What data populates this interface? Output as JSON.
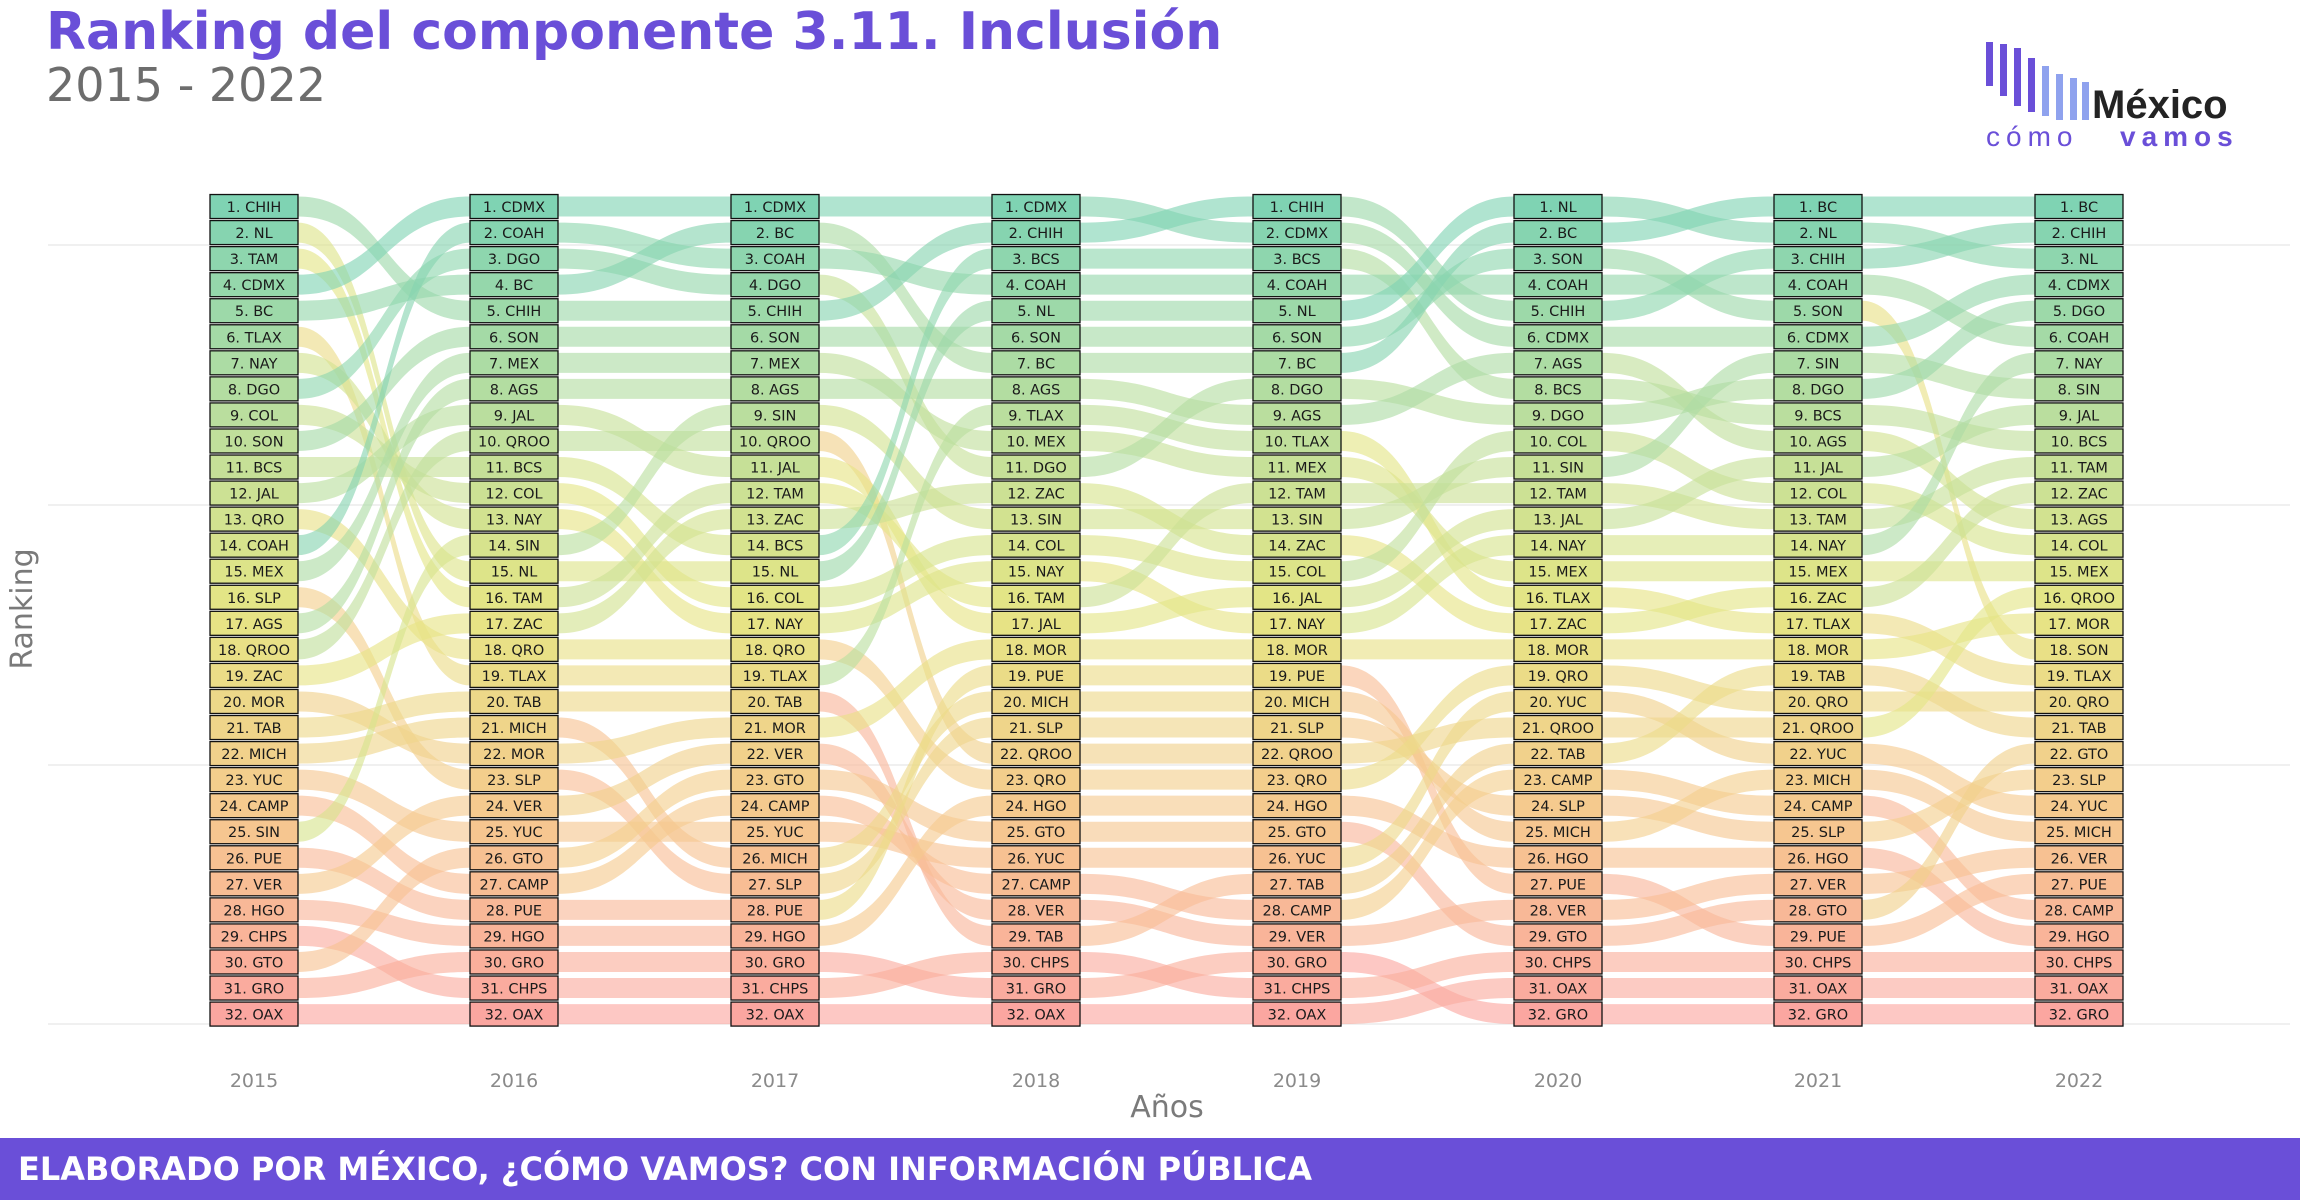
{
  "header": {
    "title": "Ranking del componente 3.11. Inclusión",
    "subtitle": "2015 - 2022"
  },
  "logo": {
    "word_top": "México",
    "word_bottom_a": "cómo",
    "word_bottom_b": "vamos",
    "colors": [
      "#6a4fd8",
      "#8fa2ee",
      "#232323"
    ]
  },
  "footer": {
    "text": "ELABORADO POR MÉXICO, ¿CÓMO VAMOS? CON INFORMACIÓN PÚBLICA",
    "color": "#6a4fd8"
  },
  "chart_data": {
    "type": "bump",
    "title": "Ranking del componente 3.11. Inclusión",
    "subtitle": "2015 - 2022",
    "xlabel": "Años",
    "ylabel": "Ranking",
    "years": [
      "2015",
      "2016",
      "2017",
      "2018",
      "2019",
      "2020",
      "2021",
      "2022"
    ],
    "ranks": [
      [
        "CHIH",
        "NL",
        "TAM",
        "CDMX",
        "BC",
        "TLAX",
        "NAY",
        "DGO",
        "COL",
        "SON",
        "BCS",
        "JAL",
        "QRO",
        "COAH",
        "MEX",
        "SLP",
        "AGS",
        "QROO",
        "ZAC",
        "MOR",
        "TAB",
        "MICH",
        "YUC",
        "CAMP",
        "SIN",
        "PUE",
        "VER",
        "HGO",
        "CHPS",
        "GTO",
        "GRO",
        "OAX"
      ],
      [
        "CDMX",
        "COAH",
        "DGO",
        "BC",
        "CHIH",
        "SON",
        "MEX",
        "AGS",
        "JAL",
        "QROO",
        "BCS",
        "COL",
        "NAY",
        "SIN",
        "NL",
        "TAM",
        "ZAC",
        "QRO",
        "TLAX",
        "TAB",
        "MICH",
        "MOR",
        "SLP",
        "VER",
        "YUC",
        "GTO",
        "CAMP",
        "PUE",
        "HGO",
        "GRO",
        "CHPS",
        "OAX"
      ],
      [
        "CDMX",
        "BC",
        "COAH",
        "DGO",
        "CHIH",
        "SON",
        "MEX",
        "AGS",
        "SIN",
        "QROO",
        "JAL",
        "TAM",
        "ZAC",
        "BCS",
        "NL",
        "COL",
        "NAY",
        "QRO",
        "TLAX",
        "TAB",
        "MOR",
        "VER",
        "GTO",
        "CAMP",
        "YUC",
        "MICH",
        "SLP",
        "PUE",
        "HGO",
        "GRO",
        "CHPS",
        "OAX"
      ],
      [
        "CDMX",
        "CHIH",
        "BCS",
        "COAH",
        "NL",
        "SON",
        "BC",
        "AGS",
        "TLAX",
        "MEX",
        "DGO",
        "ZAC",
        "SIN",
        "COL",
        "NAY",
        "TAM",
        "JAL",
        "MOR",
        "PUE",
        "MICH",
        "SLP",
        "QROO",
        "QRO",
        "HGO",
        "GTO",
        "YUC",
        "CAMP",
        "VER",
        "TAB",
        "CHPS",
        "GRO",
        "OAX"
      ],
      [
        "CHIH",
        "CDMX",
        "BCS",
        "COAH",
        "NL",
        "SON",
        "BC",
        "DGO",
        "AGS",
        "TLAX",
        "MEX",
        "TAM",
        "SIN",
        "ZAC",
        "COL",
        "JAL",
        "NAY",
        "MOR",
        "PUE",
        "MICH",
        "SLP",
        "QROO",
        "QRO",
        "HGO",
        "GTO",
        "YUC",
        "TAB",
        "CAMP",
        "VER",
        "GRO",
        "CHPS",
        "OAX"
      ],
      [
        "NL",
        "BC",
        "SON",
        "COAH",
        "CHIH",
        "CDMX",
        "AGS",
        "BCS",
        "DGO",
        "COL",
        "SIN",
        "TAM",
        "JAL",
        "NAY",
        "MEX",
        "TLAX",
        "ZAC",
        "MOR",
        "QRO",
        "YUC",
        "QROO",
        "TAB",
        "CAMP",
        "SLP",
        "MICH",
        "HGO",
        "PUE",
        "VER",
        "GTO",
        "CHPS",
        "OAX",
        "GRO"
      ],
      [
        "BC",
        "NL",
        "CHIH",
        "COAH",
        "SON",
        "CDMX",
        "SIN",
        "DGO",
        "BCS",
        "AGS",
        "JAL",
        "COL",
        "TAM",
        "NAY",
        "MEX",
        "ZAC",
        "TLAX",
        "MOR",
        "TAB",
        "QRO",
        "QROO",
        "YUC",
        "MICH",
        "CAMP",
        "SLP",
        "HGO",
        "VER",
        "GTO",
        "PUE",
        "CHPS",
        "OAX",
        "GRO"
      ],
      [
        "BC",
        "CHIH",
        "NL",
        "CDMX",
        "DGO",
        "COAH",
        "NAY",
        "SIN",
        "JAL",
        "BCS",
        "TAM",
        "ZAC",
        "AGS",
        "COL",
        "MEX",
        "QROO",
        "MOR",
        "SON",
        "TLAX",
        "QRO",
        "TAB",
        "GTO",
        "SLP",
        "YUC",
        "MICH",
        "VER",
        "PUE",
        "CAMP",
        "HGO",
        "CHPS",
        "OAX",
        "GRO"
      ]
    ],
    "color_scale": [
      "#7fd3b3",
      "#b9de9f",
      "#e6e584",
      "#f6c98e",
      "#fba6a0"
    ],
    "grid": true
  }
}
